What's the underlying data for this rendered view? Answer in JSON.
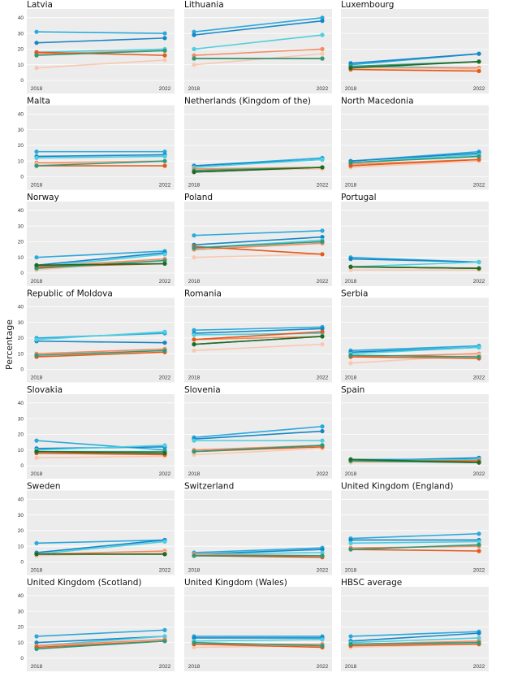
{
  "chart_data": {
    "type": "line",
    "ylabel": "Percentage",
    "x": [
      "2018",
      "2022"
    ],
    "yticks": [
      0,
      10,
      20,
      30,
      40
    ],
    "ylim": [
      0,
      43
    ],
    "grid": true,
    "colors": [
      "#29a9dd",
      "#1587c7",
      "#4ccfe0",
      "#f58a63",
      "#f9c7b0",
      "#e45a1a",
      "#2e9a7a",
      "#1f6b22"
    ],
    "panels": [
      {
        "title": "Latvia",
        "series": [
          [
            31,
            30
          ],
          [
            24,
            27
          ],
          [
            18,
            20
          ],
          [
            17,
            19
          ],
          [
            8,
            13
          ],
          [
            18,
            16
          ],
          [
            16,
            19
          ]
        ]
      },
      {
        "title": "Lithuania",
        "series": [
          [
            31,
            40
          ],
          [
            29,
            38
          ],
          [
            20,
            29
          ],
          [
            16,
            20
          ],
          [
            10,
            17
          ],
          [
            14,
            14
          ],
          [
            14,
            14
          ]
        ]
      },
      {
        "title": "Luxembourg",
        "series": [
          [
            10,
            17
          ],
          [
            11,
            17
          ],
          [
            9,
            8
          ],
          [
            8,
            8
          ],
          [
            8,
            7
          ],
          [
            7,
            6
          ],
          [
            9,
            12
          ],
          [
            8,
            12
          ]
        ]
      },
      {
        "title": "Malta",
        "series": [
          [
            16,
            16
          ],
          [
            13,
            14
          ],
          [
            12,
            13
          ],
          [
            9,
            10
          ],
          [
            8,
            10
          ],
          [
            7,
            7
          ],
          [
            7,
            10
          ]
        ]
      },
      {
        "title": "Netherlands (Kingdom of the)",
        "series": [
          [
            7,
            12
          ],
          [
            7,
            11
          ],
          [
            6,
            11
          ],
          [
            5,
            6
          ],
          [
            4,
            5
          ],
          [
            3,
            6
          ],
          [
            4,
            6
          ],
          [
            3,
            6
          ]
        ]
      },
      {
        "title": "North Macedonia",
        "series": [
          [
            10,
            16
          ],
          [
            10,
            15
          ],
          [
            9,
            14
          ],
          [
            8,
            11
          ],
          [
            6,
            10
          ],
          [
            7,
            11
          ],
          [
            9,
            13
          ]
        ]
      },
      {
        "title": "Norway",
        "series": [
          [
            10,
            14
          ],
          [
            5,
            13
          ],
          [
            4,
            12
          ],
          [
            4,
            9
          ],
          [
            2,
            8
          ],
          [
            4,
            6
          ],
          [
            3,
            8
          ],
          [
            5,
            6
          ]
        ]
      },
      {
        "title": "Poland",
        "series": [
          [
            24,
            27
          ],
          [
            18,
            23
          ],
          [
            16,
            21
          ],
          [
            15,
            19
          ],
          [
            10,
            12
          ],
          [
            17,
            12
          ],
          [
            16,
            20
          ]
        ]
      },
      {
        "title": "Portugal",
        "series": [
          [
            10,
            7
          ],
          [
            9,
            7
          ],
          [
            4,
            7
          ],
          [
            4,
            3
          ],
          [
            2,
            2
          ],
          [
            4,
            3
          ],
          [
            4,
            3
          ],
          [
            4,
            3
          ]
        ]
      },
      {
        "title": "Republic of Moldova",
        "series": [
          [
            20,
            23
          ],
          [
            18,
            17
          ],
          [
            19,
            24
          ],
          [
            10,
            13
          ],
          [
            9,
            12
          ],
          [
            8,
            11
          ],
          [
            9,
            12
          ]
        ]
      },
      {
        "title": "Romania",
        "series": [
          [
            25,
            27
          ],
          [
            23,
            26
          ],
          [
            22,
            23
          ],
          [
            19,
            21
          ],
          [
            12,
            16
          ],
          [
            19,
            24
          ],
          [
            16,
            21
          ],
          [
            16,
            21
          ]
        ]
      },
      {
        "title": "Serbia",
        "series": [
          [
            12,
            15
          ],
          [
            11,
            14
          ],
          [
            10,
            14
          ],
          [
            8,
            10
          ],
          [
            4,
            9
          ],
          [
            8,
            7
          ],
          [
            9,
            8
          ]
        ]
      },
      {
        "title": "Slovakia",
        "series": [
          [
            16,
            10
          ],
          [
            11,
            12
          ],
          [
            10,
            13
          ],
          [
            8,
            8
          ],
          [
            5,
            6
          ],
          [
            8,
            7
          ],
          [
            9,
            9
          ],
          [
            9,
            8
          ]
        ]
      },
      {
        "title": "Slovenia",
        "series": [
          [
            18,
            25
          ],
          [
            17,
            22
          ],
          [
            16,
            16
          ],
          [
            10,
            13
          ],
          [
            7,
            11
          ],
          [
            9,
            12
          ],
          [
            9,
            13
          ]
        ]
      },
      {
        "title": "Spain",
        "series": [
          [
            4,
            4
          ],
          [
            3,
            5
          ],
          [
            3,
            4
          ],
          [
            3,
            3
          ],
          [
            2,
            3
          ],
          [
            3,
            3
          ],
          [
            3,
            2
          ],
          [
            4,
            2
          ]
        ]
      },
      {
        "title": "Sweden",
        "series": [
          [
            12,
            14
          ],
          [
            6,
            14
          ],
          [
            5,
            13
          ],
          [
            5,
            7
          ],
          [
            4,
            6
          ],
          [
            5,
            5
          ],
          [
            5,
            5
          ],
          [
            5,
            5
          ]
        ]
      },
      {
        "title": "Switzerland",
        "series": [
          [
            6,
            9
          ],
          [
            5,
            8
          ],
          [
            5,
            6
          ],
          [
            5,
            4
          ],
          [
            4,
            4
          ],
          [
            4,
            3
          ],
          [
            4,
            4
          ]
        ]
      },
      {
        "title": "United Kingdom (England)",
        "series": [
          [
            15,
            18
          ],
          [
            14,
            14
          ],
          [
            12,
            13
          ],
          [
            9,
            10
          ],
          [
            8,
            11
          ],
          [
            8,
            7
          ],
          [
            8,
            11
          ]
        ]
      },
      {
        "title": "United Kingdom (Scotland)",
        "series": [
          [
            14,
            18
          ],
          [
            10,
            14
          ],
          [
            8,
            14
          ],
          [
            8,
            12
          ],
          [
            6,
            11
          ],
          [
            7,
            11
          ],
          [
            6,
            11
          ]
        ]
      },
      {
        "title": "United Kingdom (Wales)",
        "series": [
          [
            14,
            14
          ],
          [
            13,
            13
          ],
          [
            11,
            12
          ],
          [
            9,
            9
          ],
          [
            7,
            8
          ],
          [
            9,
            7
          ],
          [
            10,
            8
          ]
        ]
      },
      {
        "title": "HBSC average",
        "series": [
          [
            14,
            17
          ],
          [
            11,
            16
          ],
          [
            10,
            13
          ],
          [
            9,
            11
          ],
          [
            7,
            9
          ],
          [
            8,
            9
          ],
          [
            9,
            10
          ]
        ]
      }
    ]
  }
}
